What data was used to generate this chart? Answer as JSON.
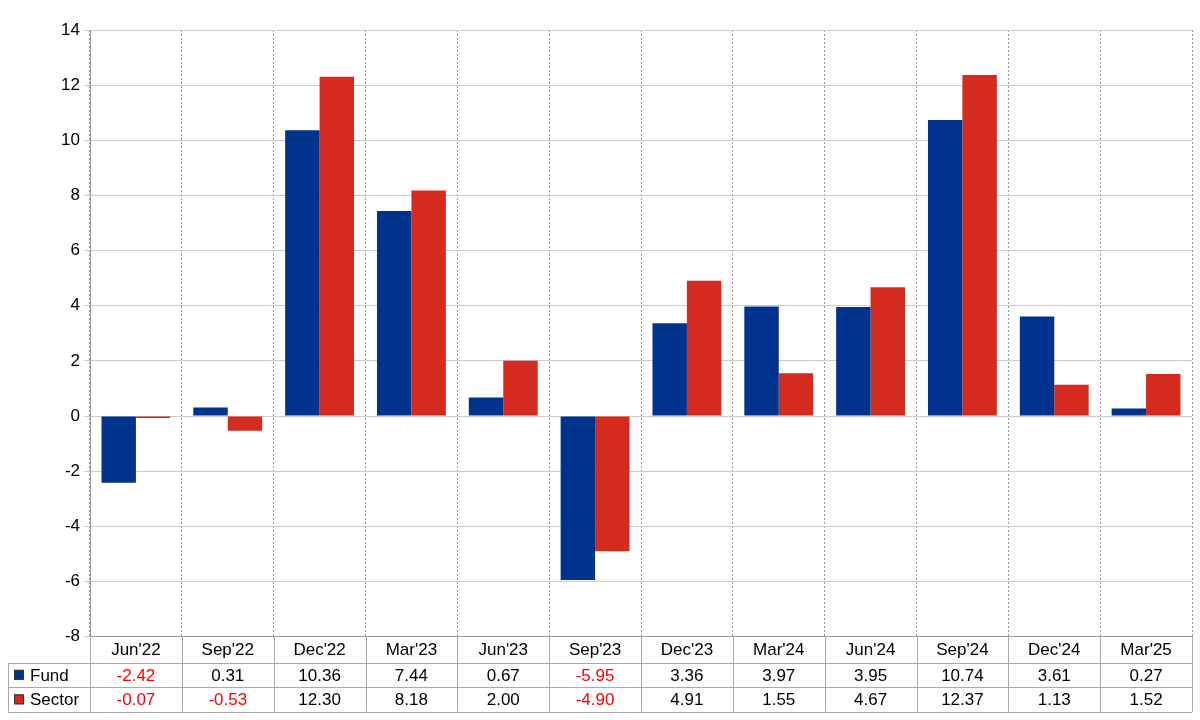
{
  "chart_data": {
    "type": "bar",
    "categories": [
      "Jun'22",
      "Sep'22",
      "Dec'22",
      "Mar'23",
      "Jun'23",
      "Sep'23",
      "Dec'23",
      "Mar'24",
      "Jun'24",
      "Sep'24",
      "Dec'24",
      "Mar'25"
    ],
    "series": [
      {
        "name": "Fund",
        "color": "#00338d",
        "values": [
          -2.42,
          0.31,
          10.36,
          7.44,
          0.67,
          -5.95,
          3.36,
          3.97,
          3.95,
          10.74,
          3.61,
          0.27
        ]
      },
      {
        "name": "Sector",
        "color": "#d52b1e",
        "values": [
          -0.07,
          -0.53,
          12.3,
          8.18,
          2.0,
          -4.9,
          4.91,
          1.55,
          4.67,
          12.37,
          1.13,
          1.52
        ]
      }
    ],
    "value_labels": [
      [
        "-2.42",
        "0.31",
        "10.36",
        "7.44",
        "0.67",
        "-5.95",
        "3.36",
        "3.97",
        "3.95",
        "10.74",
        "3.61",
        "0.27"
      ],
      [
        "-0.07",
        "-0.53",
        "12.30",
        "8.18",
        "2.00",
        "-4.90",
        "4.91",
        "1.55",
        "4.67",
        "12.37",
        "1.13",
        "1.52"
      ]
    ],
    "ylim": [
      -8,
      14
    ],
    "yticks": [
      -8,
      -6,
      -4,
      -2,
      0,
      2,
      4,
      6,
      8,
      10,
      12,
      14
    ],
    "grid": true,
    "legend": "bottom left"
  }
}
